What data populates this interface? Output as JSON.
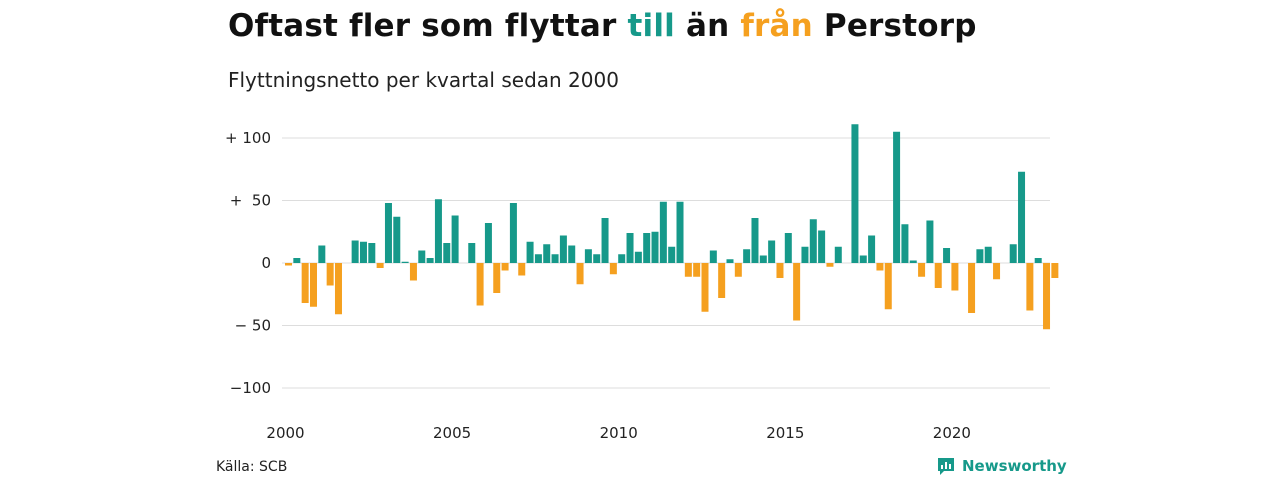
{
  "title": {
    "part1": "Oftast fler som flyttar ",
    "in_word": "till",
    "part2": " än ",
    "out_word": "från",
    "part3": " Perstorp"
  },
  "subtitle": "Flyttningsnetto per kvartal sedan 2000",
  "source": "Källa: SCB",
  "brand": "Newsworthy",
  "colors": {
    "positive": "#16998a",
    "negative": "#f5a01f",
    "grid": "#dddddd",
    "text": "#222222"
  },
  "chart_data": {
    "type": "bar",
    "x_start": "2000 Q1",
    "x_step": "quarter",
    "values": [
      -2,
      4,
      -32,
      -35,
      14,
      -18,
      -41,
      0,
      18,
      17,
      16,
      -4,
      48,
      37,
      1,
      -14,
      10,
      4,
      51,
      16,
      38,
      0,
      16,
      -34,
      32,
      -24,
      -6,
      48,
      -10,
      17,
      7,
      15,
      7,
      22,
      14,
      -17,
      11,
      7,
      36,
      -9,
      7,
      24,
      9,
      24,
      25,
      49,
      13,
      49,
      -11,
      -11,
      -39,
      10,
      -28,
      3,
      -11,
      11,
      36,
      6,
      18,
      -12,
      24,
      -46,
      13,
      35,
      26,
      -3,
      13,
      0,
      111,
      6,
      22,
      -6,
      -37,
      105,
      31,
      2,
      -11,
      34,
      -20,
      12,
      -22,
      0,
      -40,
      11,
      13,
      -13,
      0,
      15,
      73,
      -38,
      4,
      -53,
      -12
    ],
    "y_ticks": [
      100,
      50,
      0,
      -50,
      -100
    ],
    "y_tick_labels": [
      "+ 100",
      "+  50",
      "0",
      "− 50",
      "−100"
    ],
    "x_ticks": [
      "2000",
      "2005",
      "2010",
      "2015",
      "2020"
    ],
    "ylim": [
      -100,
      100
    ],
    "grid": true
  }
}
